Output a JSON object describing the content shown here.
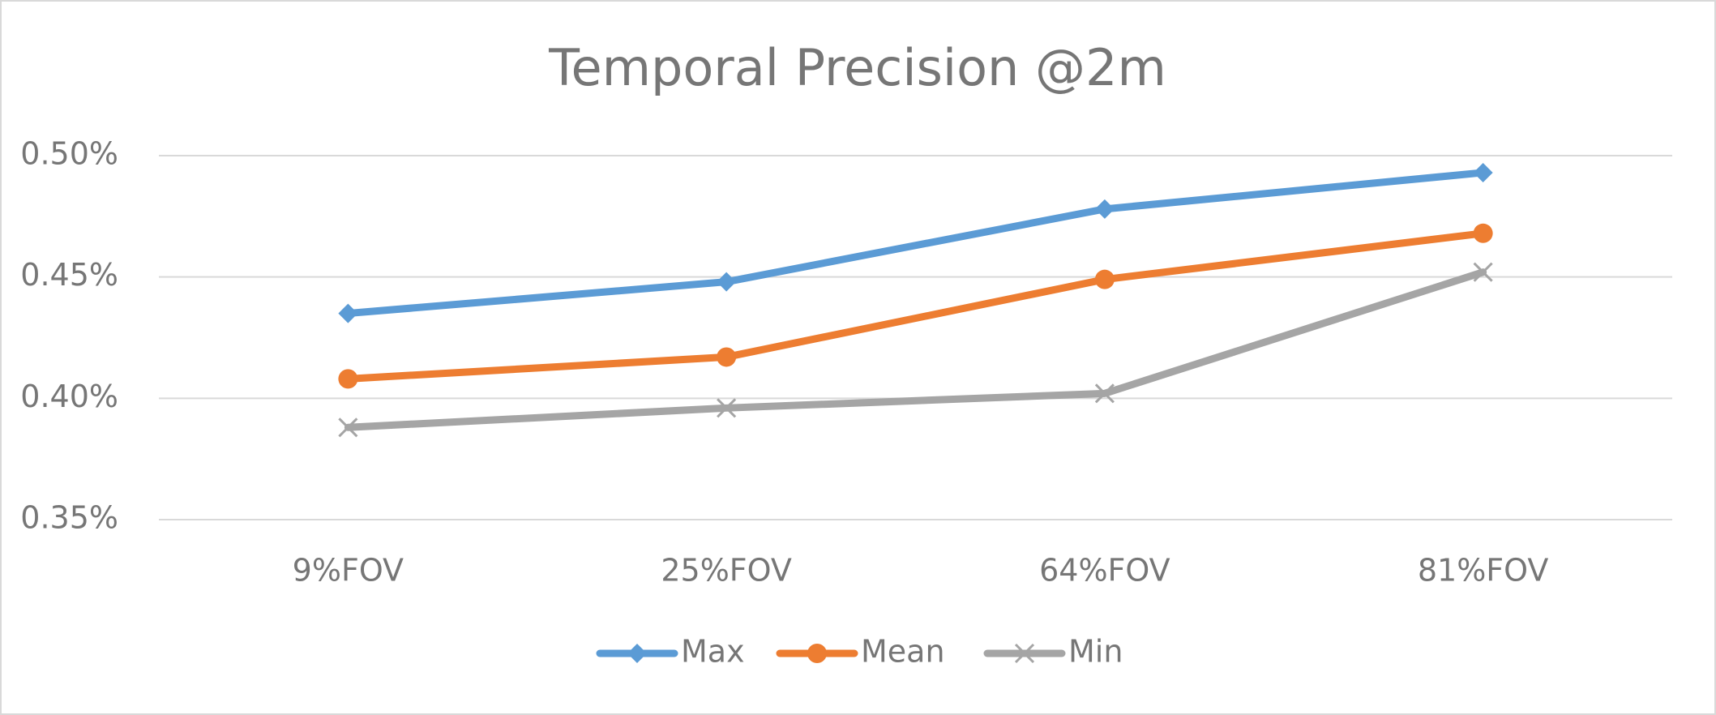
{
  "chart_data": {
    "type": "line",
    "title": "Temporal Precision @2m",
    "categories": [
      "9%FOV",
      "25%FOV",
      "64%FOV",
      "81%FOV"
    ],
    "series": [
      {
        "name": "Max",
        "color": "#5b9bd5",
        "marker": "diamond",
        "values": [
          0.435,
          0.448,
          0.478,
          0.493
        ]
      },
      {
        "name": "Mean",
        "color": "#ed7d31",
        "marker": "circle",
        "values": [
          0.408,
          0.417,
          0.449,
          0.468
        ]
      },
      {
        "name": "Min",
        "color": "#a5a5a5",
        "marker": "x",
        "values": [
          0.388,
          0.396,
          0.402,
          0.452
        ]
      }
    ],
    "ylim": [
      0.35,
      0.5
    ],
    "yticks": [
      {
        "value": 0.35,
        "label": "0.35%"
      },
      {
        "value": 0.4,
        "label": "0.40%"
      },
      {
        "value": 0.45,
        "label": "0.45%"
      },
      {
        "value": 0.5,
        "label": "0.50%"
      }
    ],
    "grid": true,
    "legend": "bottom"
  }
}
